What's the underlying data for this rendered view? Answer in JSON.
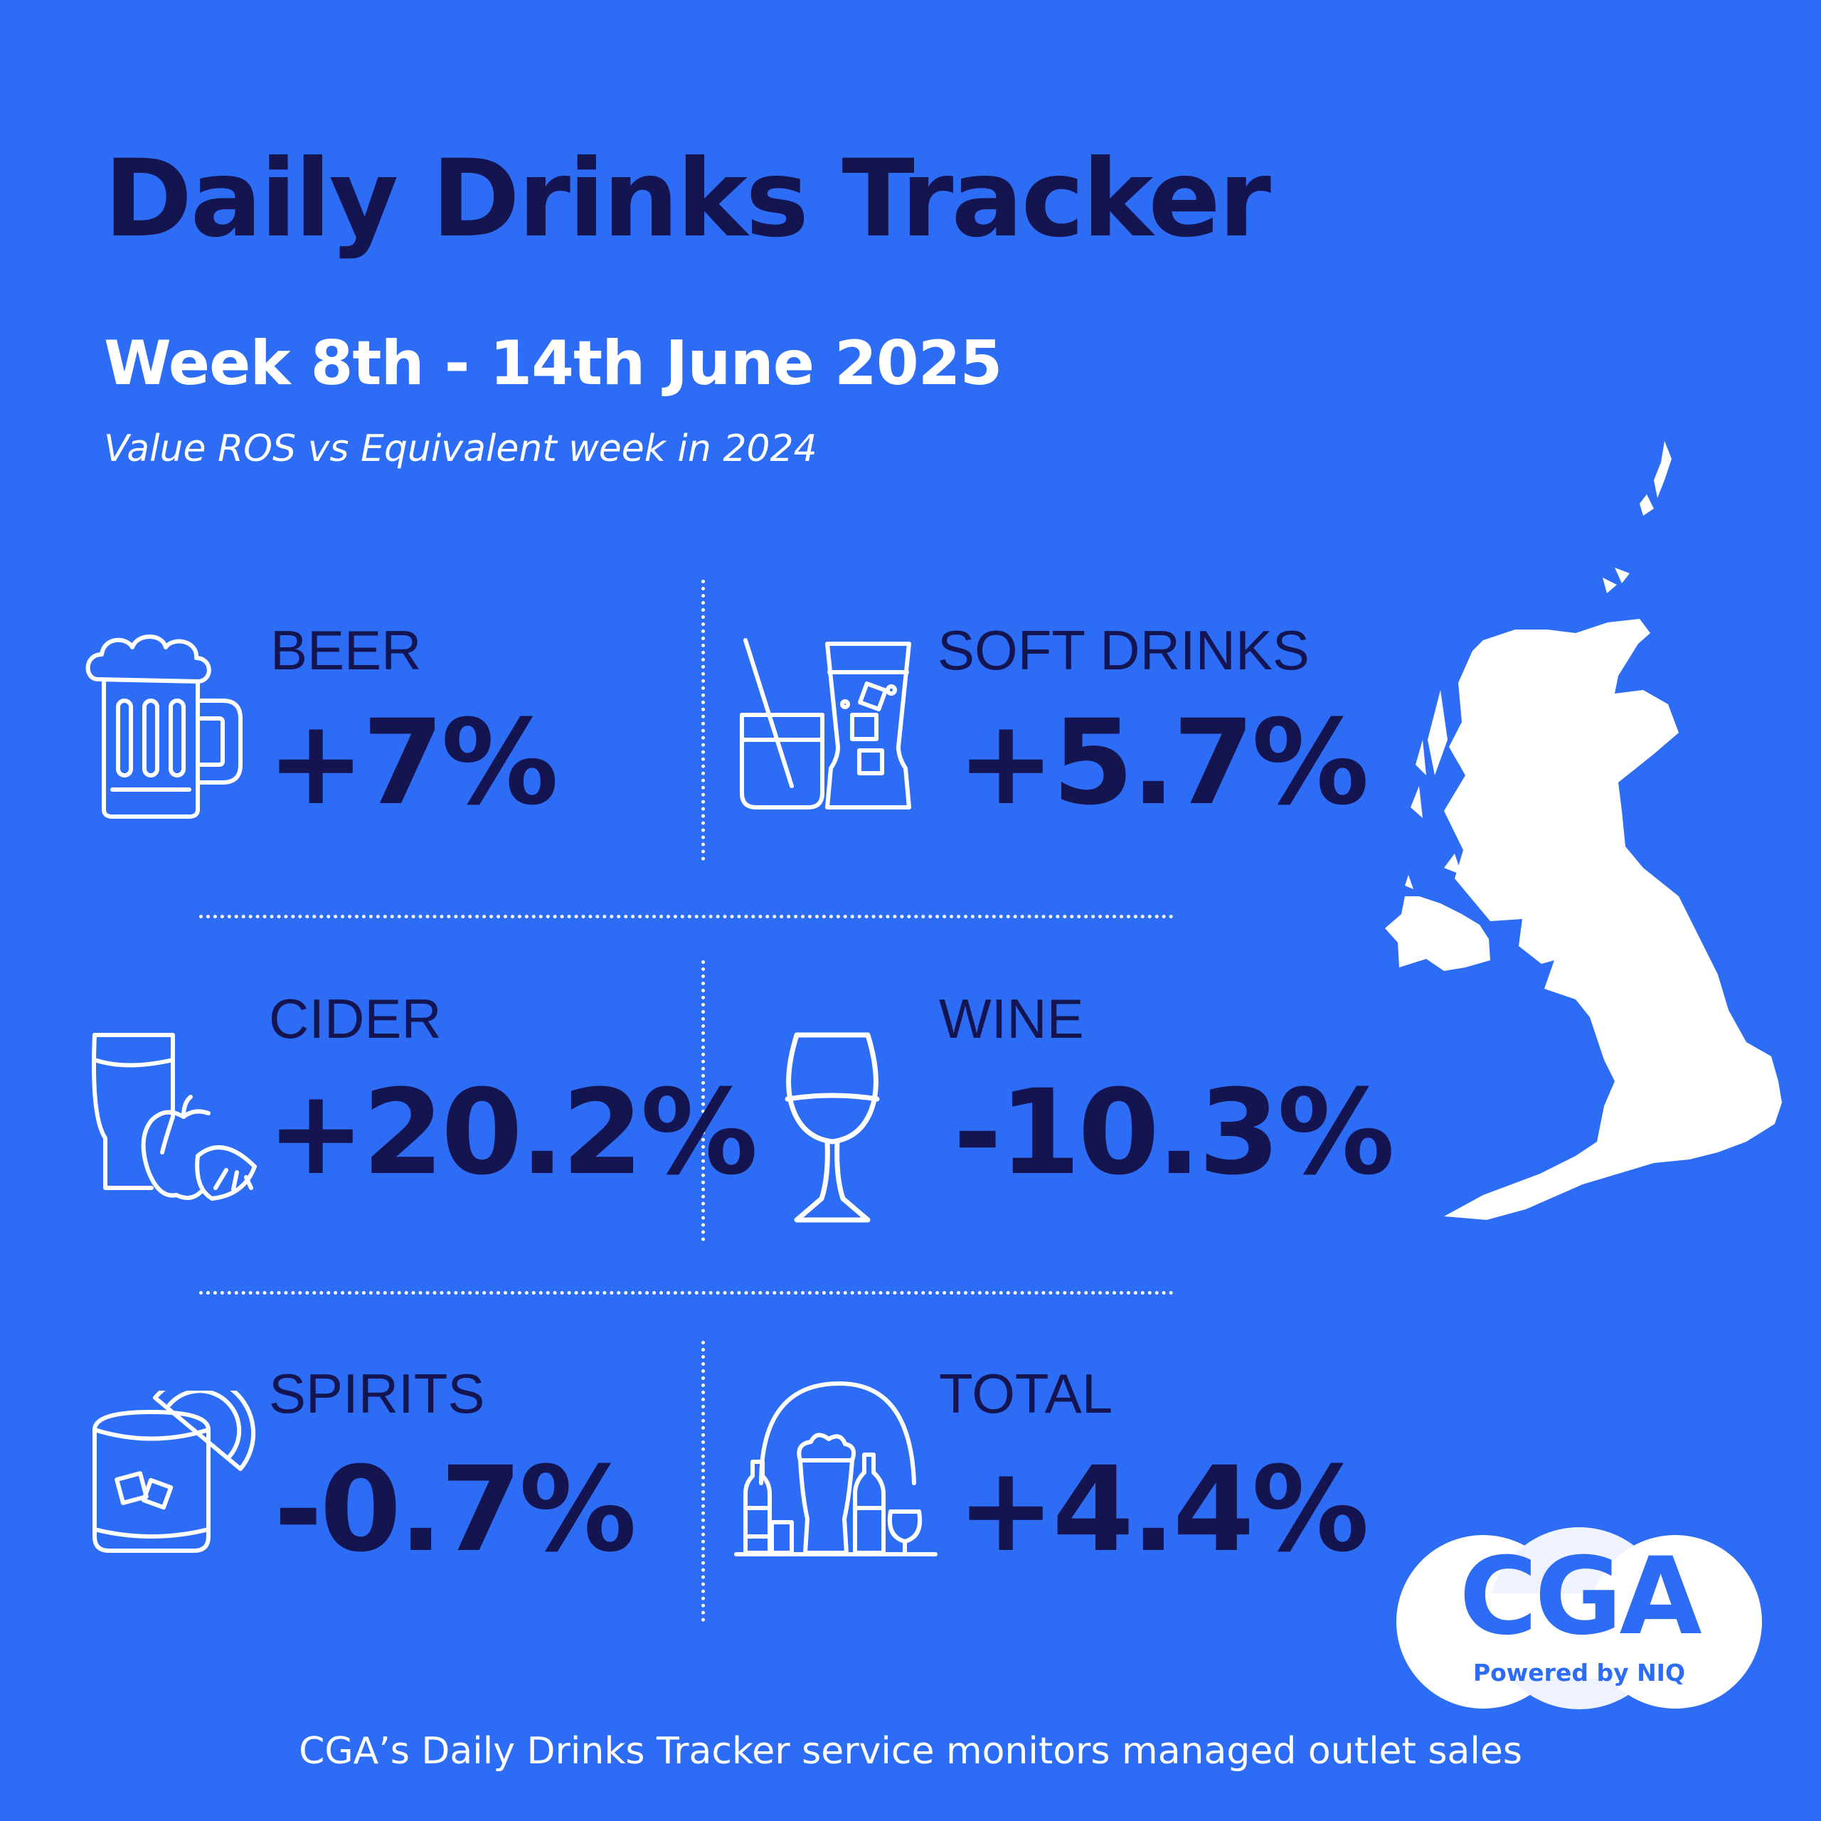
{
  "title": "Daily Drinks Tracker",
  "week": "Week 8th - 14th June 2025",
  "subtitle": "Value ROS vs Equivalent week in 2024",
  "categories": [
    {
      "label": "BEER",
      "value": "+7%",
      "icon": "beer-mug-icon"
    },
    {
      "label": "SOFT DRINKS",
      "value": "+5.7%",
      "icon": "soft-drinks-icon"
    },
    {
      "label": "CIDER",
      "value": "+20.2%",
      "icon": "cider-apple-icon"
    },
    {
      "label": "WINE",
      "value": "-10.3%",
      "icon": "wine-glass-icon"
    },
    {
      "label": "SPIRITS",
      "value": "-0.7%",
      "icon": "spirits-glass-icon"
    },
    {
      "label": "TOTAL",
      "value": "+4.4%",
      "icon": "drinks-assortment-icon"
    }
  ],
  "logo": {
    "text": "CGA",
    "subtext": "Powered by NIQ"
  },
  "footer": "CGA’s Daily Drinks Tracker service monitors managed outlet sales",
  "colors": {
    "background": "#2d6cf4",
    "text_dark": "#141450",
    "text_light": "#ffffff"
  }
}
